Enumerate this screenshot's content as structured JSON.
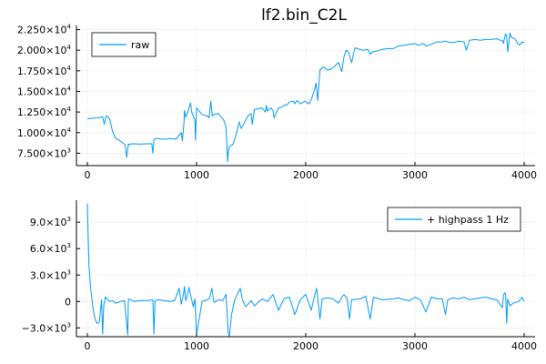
{
  "title": "lf2.bin_C2L",
  "colors": {
    "series": "#009af9",
    "grid": "#ebebeb",
    "axis": "#000000"
  },
  "chart_data": [
    {
      "type": "line",
      "grid": true,
      "legend_position": "top-left",
      "xlim": [
        -100,
        4100
      ],
      "ylim": [
        6000,
        23000
      ],
      "x_ticks": [
        {
          "value": 0,
          "label": "0"
        },
        {
          "value": 1000,
          "label": "1000"
        },
        {
          "value": 2000,
          "label": "2000"
        },
        {
          "value": 3000,
          "label": "3000"
        },
        {
          "value": 4000,
          "label": "4000"
        }
      ],
      "y_ticks": [
        {
          "value": 7500,
          "mantissa": "7.500×10",
          "exp": "3"
        },
        {
          "value": 10000,
          "mantissa": "1.000×10",
          "exp": "4"
        },
        {
          "value": 12500,
          "mantissa": "1.250×10",
          "exp": "4"
        },
        {
          "value": 15000,
          "mantissa": "1.500×10",
          "exp": "4"
        },
        {
          "value": 17500,
          "mantissa": "1.750×10",
          "exp": "4"
        },
        {
          "value": 20000,
          "mantissa": "2.000×10",
          "exp": "4"
        },
        {
          "value": 22500,
          "mantissa": "2.250×10",
          "exp": "4"
        }
      ],
      "series": [
        {
          "name": "raw",
          "x": [
            0,
            100,
            140,
            155,
            170,
            180,
            205,
            230,
            260,
            300,
            345,
            360,
            375,
            380,
            390,
            420,
            490,
            540,
            590,
            600,
            610,
            640,
            690,
            730,
            760,
            810,
            860,
            870,
            885,
            890,
            900,
            905,
            920,
            935,
            945,
            955,
            970,
            985,
            990,
            1000,
            1050,
            1100,
            1115,
            1130,
            1145,
            1160,
            1200,
            1250,
            1270,
            1285,
            1290,
            1300,
            1320,
            1330,
            1350,
            1380,
            1390,
            1410,
            1470,
            1500,
            1510,
            1530,
            1600,
            1630,
            1640,
            1650,
            1660,
            1680,
            1700,
            1710,
            1750,
            1780,
            1800,
            1830,
            1850,
            1870,
            1890,
            1900,
            1920,
            1950,
            1990,
            2030,
            2050,
            2080,
            2095,
            2110,
            2130,
            2160,
            2200,
            2230,
            2260,
            2300,
            2330,
            2350,
            2370,
            2390,
            2420,
            2450,
            2520,
            2570,
            2590,
            2610,
            2650,
            2700,
            2750,
            2800,
            2850,
            2900,
            2950,
            3000,
            3030,
            3050,
            3080,
            3100,
            3150,
            3200,
            3250,
            3280,
            3300,
            3350,
            3400,
            3450,
            3470,
            3500,
            3550,
            3600,
            3650,
            3700,
            3750,
            3780,
            3800,
            3810,
            3820,
            3830,
            3840,
            3850,
            3870,
            3880,
            3900,
            3920,
            3940,
            3960,
            3980,
            4000
          ],
          "y": [
            11700,
            11800,
            11950,
            11000,
            12000,
            12050,
            11600,
            10200,
            9300,
            9000,
            8550,
            7000,
            8600,
            8500,
            8600,
            8650,
            8600,
            8650,
            8650,
            7500,
            9200,
            9300,
            9200,
            9250,
            9300,
            9200,
            10000,
            9000,
            11200,
            12700,
            11900,
            12000,
            12500,
            13200,
            13600,
            12500,
            12000,
            11500,
            9100,
            13000,
            12200,
            12000,
            11800,
            13800,
            12000,
            12200,
            12300,
            11500,
            10700,
            6500,
            7500,
            8300,
            8500,
            8500,
            9200,
            10700,
            11300,
            10500,
            12000,
            12300,
            11000,
            12800,
            13000,
            12500,
            13300,
            12600,
            12800,
            13000,
            12700,
            11800,
            13000,
            13100,
            13300,
            13400,
            13700,
            13800,
            13800,
            13500,
            13900,
            13500,
            13800,
            13500,
            14000,
            15200,
            16000,
            13900,
            17600,
            18000,
            17600,
            17700,
            18000,
            18500,
            17400,
            19200,
            20000,
            19800,
            18500,
            20300,
            20000,
            20100,
            19500,
            19800,
            19900,
            20100,
            20200,
            20200,
            20500,
            20600,
            20700,
            20800,
            20600,
            20700,
            20800,
            20500,
            20700,
            21000,
            21000,
            21100,
            21000,
            20900,
            21100,
            21000,
            20000,
            21200,
            21300,
            21200,
            21300,
            21300,
            21400,
            21200,
            21200,
            20800,
            21500,
            22000,
            21700,
            19800,
            22100,
            21600,
            21500,
            21300,
            20800,
            20600,
            21000,
            20900
          ]
        }
      ]
    },
    {
      "type": "line",
      "grid": true,
      "legend_position": "top-right",
      "xlim": [
        -100,
        4100
      ],
      "ylim": [
        -4000,
        11500
      ],
      "x_ticks": [
        {
          "value": 0,
          "label": "0"
        },
        {
          "value": 1000,
          "label": "1000"
        },
        {
          "value": 2000,
          "label": "2000"
        },
        {
          "value": 3000,
          "label": "3000"
        },
        {
          "value": 4000,
          "label": "4000"
        }
      ],
      "y_ticks": [
        {
          "value": -3000,
          "mantissa": "−3.0×10",
          "exp": "3"
        },
        {
          "value": 0,
          "mantissa": "0",
          "exp": ""
        },
        {
          "value": 3000,
          "mantissa": "3.0×10",
          "exp": "3"
        },
        {
          "value": 6000,
          "mantissa": "6.0×10",
          "exp": "3"
        },
        {
          "value": 9000,
          "mantissa": "9.0×10",
          "exp": "3"
        }
      ],
      "series": [
        {
          "name": "+ highpass 1 Hz",
          "x": [
            0,
            5,
            15,
            30,
            50,
            70,
            90,
            110,
            120,
            130,
            140,
            150,
            165,
            180,
            200,
            230,
            260,
            300,
            340,
            370,
            375,
            380,
            400,
            430,
            480,
            550,
            600,
            610,
            620,
            650,
            700,
            760,
            800,
            840,
            860,
            880,
            890,
            900,
            910,
            930,
            950,
            970,
            985,
            1000,
            1050,
            1100,
            1120,
            1140,
            1160,
            1200,
            1240,
            1270,
            1290,
            1300,
            1320,
            1350,
            1380,
            1400,
            1420,
            1450,
            1500,
            1530,
            1600,
            1650,
            1700,
            1750,
            1800,
            1850,
            1900,
            1950,
            2000,
            2050,
            2080,
            2100,
            2130,
            2150,
            2200,
            2250,
            2300,
            2330,
            2350,
            2380,
            2400,
            2420,
            2500,
            2550,
            2590,
            2620,
            2700,
            2800,
            2850,
            2900,
            2950,
            3000,
            3050,
            3100,
            3150,
            3200,
            3250,
            3280,
            3300,
            3350,
            3400,
            3450,
            3500,
            3550,
            3600,
            3650,
            3700,
            3750,
            3800,
            3810,
            3820,
            3830,
            3840,
            3850,
            3870,
            3900,
            3950,
            3980,
            4000
          ],
          "y": [
            11100,
            8500,
            4000,
            1500,
            -600,
            -2000,
            -2500,
            -2300,
            -1000,
            200,
            -3700,
            -500,
            500,
            300,
            0,
            100,
            -200,
            0,
            100,
            -3800,
            100,
            300,
            200,
            0,
            100,
            100,
            200,
            -3700,
            100,
            200,
            100,
            0,
            100,
            1500,
            -300,
            800,
            1700,
            100,
            400,
            1600,
            500,
            -600,
            300,
            -3800,
            0,
            200,
            400,
            1500,
            -100,
            200,
            100,
            800,
            -3500,
            -4000,
            -1500,
            200,
            1000,
            1500,
            200,
            -600,
            100,
            -500,
            300,
            0,
            800,
            -1000,
            300,
            500,
            -1500,
            200,
            800,
            -1000,
            600,
            1500,
            -2000,
            300,
            400,
            300,
            -200,
            500,
            800,
            300,
            -2000,
            200,
            300,
            600,
            -2000,
            500,
            200,
            300,
            400,
            200,
            100,
            500,
            200,
            -1200,
            500,
            300,
            300,
            -1500,
            200,
            400,
            300,
            500,
            200,
            300,
            400,
            500,
            300,
            200,
            -700,
            600,
            1000,
            800,
            -2500,
            300,
            -500,
            -200,
            0,
            500,
            0
          ]
        }
      ]
    }
  ]
}
